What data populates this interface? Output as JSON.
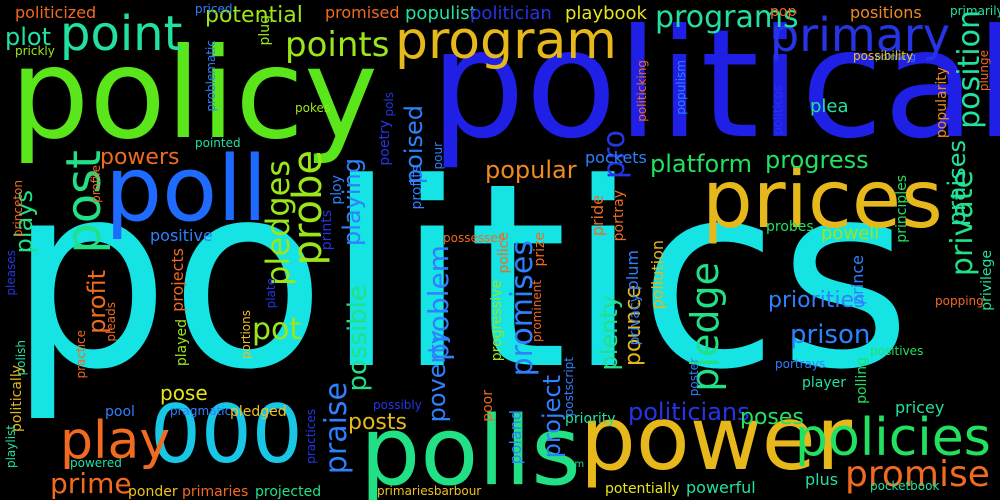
{
  "words": [
    {
      "text": "politics",
      "color": "#16e3e3"
    },
    {
      "text": "political",
      "color": "#1f1fe6"
    },
    {
      "text": "policy",
      "color": "#5ae61b"
    },
    {
      "text": "power",
      "color": "#e6b81b"
    },
    {
      "text": "prices",
      "color": "#e6b81b"
    },
    {
      "text": "poll",
      "color": "#1f6bff"
    },
    {
      "text": "polls",
      "color": "#22e086"
    },
    {
      "text": "000",
      "color": "#18c6e6"
    },
    {
      "text": "program",
      "color": "#e6b81b"
    },
    {
      "text": "primary",
      "color": "#2535e6"
    },
    {
      "text": "point",
      "color": "#22e0a0"
    },
    {
      "text": "policies",
      "color": "#22e060"
    },
    {
      "text": "play",
      "color": "#f06a20"
    },
    {
      "text": "points",
      "color": "#9ae61b"
    },
    {
      "text": "post",
      "color": "#22e086"
    },
    {
      "text": "promise",
      "color": "#f06a20"
    },
    {
      "text": "programs",
      "color": "#22e0a0"
    },
    {
      "text": "progress",
      "color": "#22e060"
    },
    {
      "text": "probe",
      "color": "#9ae61b"
    },
    {
      "text": "popular",
      "color": "#f08a20"
    },
    {
      "text": "platform",
      "color": "#22e060"
    },
    {
      "text": "private",
      "color": "#22e086"
    },
    {
      "text": "praises",
      "color": "#22e0a0"
    },
    {
      "text": "position",
      "color": "#22e0a0"
    },
    {
      "text": "pledges",
      "color": "#9ae61b"
    },
    {
      "text": "pledge",
      "color": "#22e086"
    },
    {
      "text": "playing",
      "color": "#2f80ff"
    },
    {
      "text": "poised",
      "color": "#2f80ff"
    },
    {
      "text": "pro",
      "color": "#2535e6"
    },
    {
      "text": "powers",
      "color": "#f06a20"
    },
    {
      "text": "plot",
      "color": "#22e0a0"
    },
    {
      "text": "plays",
      "color": "#22e086"
    },
    {
      "text": "profit",
      "color": "#f06a20"
    },
    {
      "text": "pot",
      "color": "#9ae61b"
    },
    {
      "text": "possible",
      "color": "#22e086"
    },
    {
      "text": "problem",
      "color": "#2f80ff"
    },
    {
      "text": "promises",
      "color": "#2f80ff"
    },
    {
      "text": "praise",
      "color": "#2f80ff"
    },
    {
      "text": "posts",
      "color": "#e6b81b"
    },
    {
      "text": "project",
      "color": "#2f80ff"
    },
    {
      "text": "prime",
      "color": "#f06a20"
    },
    {
      "text": "prison",
      "color": "#2f80ff"
    },
    {
      "text": "priorities",
      "color": "#2f80ff"
    },
    {
      "text": "politicians",
      "color": "#2535e6"
    },
    {
      "text": "poses",
      "color": "#22e060"
    },
    {
      "text": "plenty",
      "color": "#22e086"
    },
    {
      "text": "poverty",
      "color": "#2f80ff"
    },
    {
      "text": "pounce",
      "color": "#e6b81b"
    },
    {
      "text": "potential",
      "color": "#9ae61b"
    },
    {
      "text": "populist",
      "color": "#22e0a0"
    },
    {
      "text": "politician",
      "color": "#2535e6"
    },
    {
      "text": "playbook",
      "color": "#e6e61b"
    },
    {
      "text": "pop",
      "color": "#f06a20"
    },
    {
      "text": "positions",
      "color": "#f08a20"
    },
    {
      "text": "primarily",
      "color": "#22e0a0"
    },
    {
      "text": "politicized",
      "color": "#f06a20"
    },
    {
      "text": "priced",
      "color": "#2f80ff"
    },
    {
      "text": "promised",
      "color": "#f06a20"
    },
    {
      "text": "prickly",
      "color": "#9ae61b"
    },
    {
      "text": "plug",
      "color": "#9ae61b"
    },
    {
      "text": "problematic",
      "color": "#2f80ff"
    },
    {
      "text": "pointing",
      "color": "#2f80ff"
    },
    {
      "text": "possibility",
      "color": "#f0c020"
    },
    {
      "text": "popularity",
      "color": "#f08a20"
    },
    {
      "text": "politicking",
      "color": "#f06a20"
    },
    {
      "text": "populism",
      "color": "#2f80ff"
    },
    {
      "text": "plea",
      "color": "#22e0a0"
    },
    {
      "text": "politicos",
      "color": "#2535e6"
    },
    {
      "text": "plunge",
      "color": "#f06a20"
    },
    {
      "text": "pokes",
      "color": "#9ae61b"
    },
    {
      "text": "pols",
      "color": "#2535e6"
    },
    {
      "text": "pointed",
      "color": "#22e0a0"
    },
    {
      "text": "poetry",
      "color": "#2535e6"
    },
    {
      "text": "pour",
      "color": "#2f80ff"
    },
    {
      "text": "pockets",
      "color": "#2f80ff"
    },
    {
      "text": "princeton",
      "color": "#f06a20"
    },
    {
      "text": "profile",
      "color": "#f06a20"
    },
    {
      "text": "ploy",
      "color": "#2f80ff"
    },
    {
      "text": "profits",
      "color": "#2f80ff"
    },
    {
      "text": "pride",
      "color": "#f06a20"
    },
    {
      "text": "portray",
      "color": "#f06a20"
    },
    {
      "text": "principles",
      "color": "#22e060"
    },
    {
      "text": "prints",
      "color": "#2535e6"
    },
    {
      "text": "police",
      "color": "#f06a20"
    },
    {
      "text": "prize",
      "color": "#f06a20"
    },
    {
      "text": "possesses",
      "color": "#f06a20"
    },
    {
      "text": "plum",
      "color": "#2f80ff"
    },
    {
      "text": "pollution",
      "color": "#e6b81b"
    },
    {
      "text": "probes",
      "color": "#22e060"
    },
    {
      "text": "powell",
      "color": "#9ae61b"
    },
    {
      "text": "prince",
      "color": "#2f80ff"
    },
    {
      "text": "privilege",
      "color": "#22e0a0"
    },
    {
      "text": "positive",
      "color": "#2f80ff"
    },
    {
      "text": "pleases",
      "color": "#2535e6"
    },
    {
      "text": "projects",
      "color": "#f06a20"
    },
    {
      "text": "plate",
      "color": "#2535e6"
    },
    {
      "text": "pleads",
      "color": "#f06a20"
    },
    {
      "text": "popping",
      "color": "#f06a20"
    },
    {
      "text": "practice",
      "color": "#f06a20"
    },
    {
      "text": "portions",
      "color": "#f0c020"
    },
    {
      "text": "progressive",
      "color": "#9ae61b"
    },
    {
      "text": "prominent",
      "color": "#f06a20"
    },
    {
      "text": "privacy",
      "color": "#2f80ff"
    },
    {
      "text": "polish",
      "color": "#22e0a0"
    },
    {
      "text": "portrays",
      "color": "#2f80ff"
    },
    {
      "text": "positives",
      "color": "#22e060"
    },
    {
      "text": "played",
      "color": "#9ae61b"
    },
    {
      "text": "polling",
      "color": "#22e060"
    },
    {
      "text": "politically",
      "color": "#e6b81b"
    },
    {
      "text": "pose",
      "color": "#e6e61b"
    },
    {
      "text": "postscript",
      "color": "#2f80ff"
    },
    {
      "text": "poster",
      "color": "#2f80ff"
    },
    {
      "text": "pool",
      "color": "#2f80ff"
    },
    {
      "text": "pragmatic",
      "color": "#2f80ff"
    },
    {
      "text": "pledged",
      "color": "#f0c020"
    },
    {
      "text": "possibly",
      "color": "#2535e6"
    },
    {
      "text": "poor",
      "color": "#f06a20"
    },
    {
      "text": "priority",
      "color": "#22e0a0"
    },
    {
      "text": "player",
      "color": "#22e0a0"
    },
    {
      "text": "pricey",
      "color": "#22e0a0"
    },
    {
      "text": "practices",
      "color": "#2535e6"
    },
    {
      "text": "poland",
      "color": "#2f80ff"
    },
    {
      "text": "playlist",
      "color": "#22e0a0"
    },
    {
      "text": "powered",
      "color": "#22e0a0"
    },
    {
      "text": "pm",
      "color": "#22e086"
    },
    {
      "text": "pocketbook",
      "color": "#22e0a0"
    },
    {
      "text": "plus",
      "color": "#22e0a0"
    },
    {
      "text": "ponder",
      "color": "#f0c020"
    },
    {
      "text": "primaries",
      "color": "#f06a20"
    },
    {
      "text": "projected",
      "color": "#22e086"
    },
    {
      "text": "primariesbarbour",
      "color": "#f0c020"
    },
    {
      "text": "potentially",
      "color": "#e6e61b"
    },
    {
      "text": "powerful",
      "color": "#22e0a0"
    }
  ]
}
